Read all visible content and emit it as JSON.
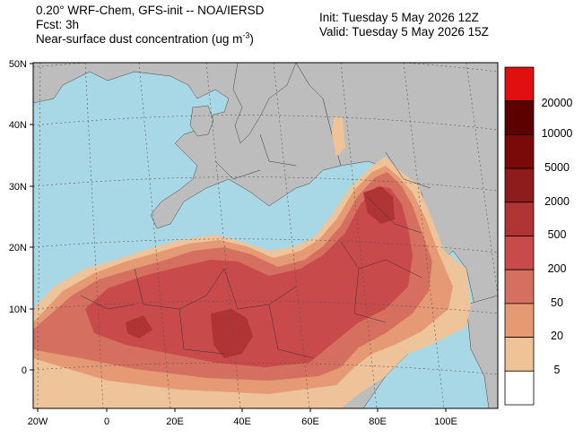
{
  "header": {
    "model_line": "0.20° WRF-Chem, GFS-init -- NOA/IERSD",
    "forecast_line": "Fcst: 3h",
    "field_line_prefix": "Near-surface dust concentration (ug m",
    "field_line_exp": "-3",
    "field_line_suffix": ")",
    "init_line": "Init: Tuesday 5 May 2026  12Z",
    "valid_line": "Valid: Tuesday 5 May 2026  15Z"
  },
  "axes": {
    "lat_labels": [
      "50N",
      "40N",
      "30N",
      "20N",
      "10N",
      "0"
    ],
    "lon_labels": [
      "20W",
      "0",
      "20E",
      "40E",
      "60E",
      "80E",
      "100E"
    ]
  },
  "legend": {
    "labels": [
      "20000",
      "10000",
      "5000",
      "2000",
      "500",
      "200",
      "50",
      "20",
      "5"
    ],
    "colors": [
      "#e01010",
      "#5c0000",
      "#7a0a0a",
      "#8f1c1c",
      "#b03434",
      "#c94a4a",
      "#d57060",
      "#e69a74",
      "#f0c397",
      "#ffffff"
    ]
  },
  "colors": {
    "ocean": "#a8d8e6",
    "land": "#bdbdbd",
    "dust_5": "#f0c397",
    "dust_20": "#e69a74",
    "dust_50": "#d57060",
    "dust_200": "#c94a4a",
    "dust_500": "#b03434"
  }
}
